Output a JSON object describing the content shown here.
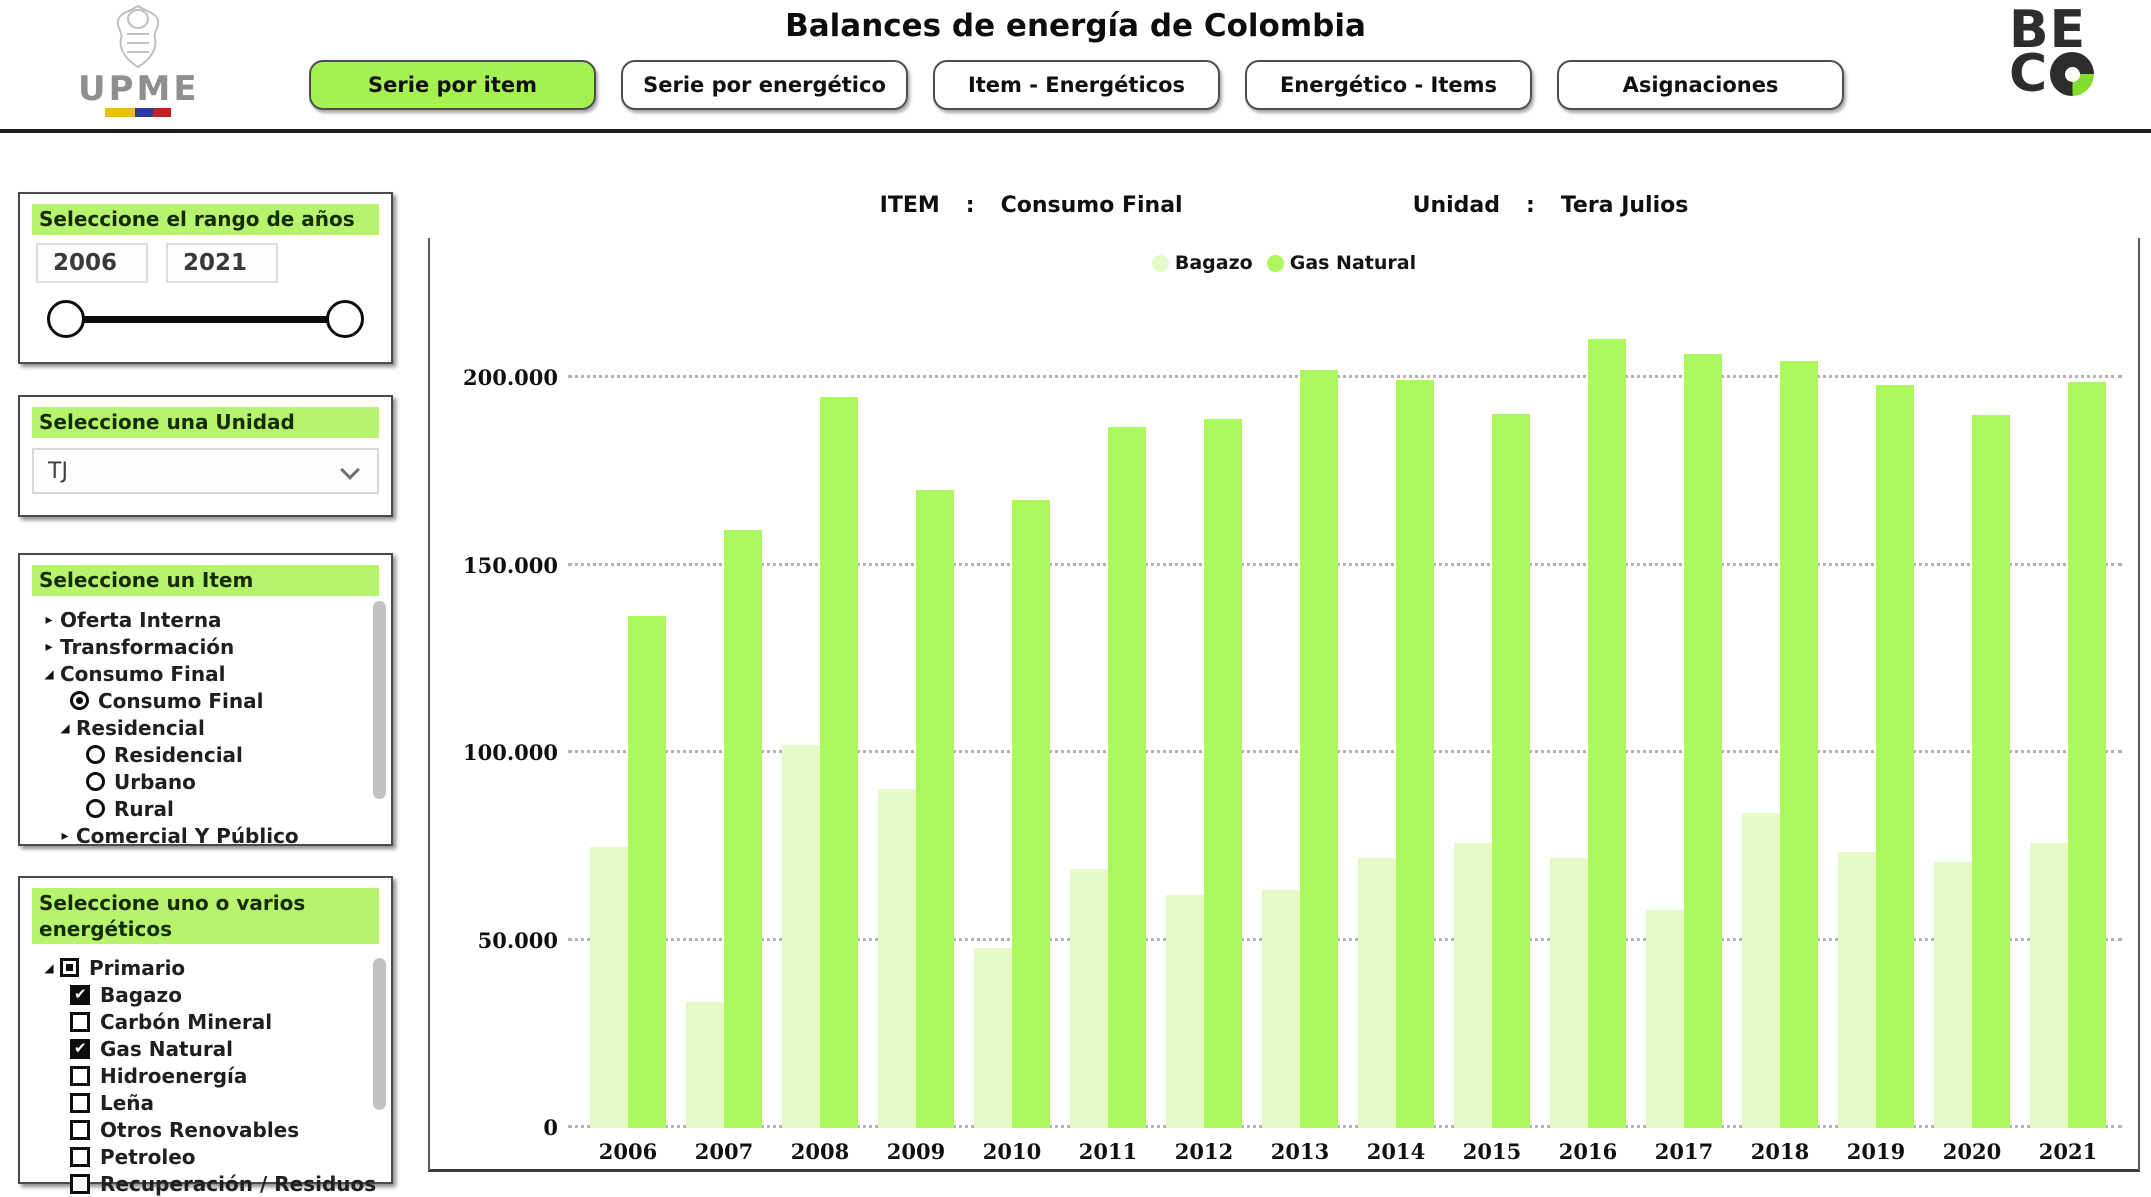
{
  "header": {
    "title": "Balances de energía de Colombia",
    "upme_text": "UPME",
    "beco_line1": "BE",
    "beco_line2_letter": "C",
    "tabs": [
      {
        "label": "Serie por item",
        "active": true
      },
      {
        "label": "Serie por energético",
        "active": false
      },
      {
        "label": "Item - Energéticos",
        "active": false
      },
      {
        "label": "Energético - Items",
        "active": false
      },
      {
        "label": "Asignaciones",
        "active": false
      }
    ]
  },
  "colors": {
    "accent_green": "#a6f152",
    "panel_header_green": "#b7f46e",
    "bar_bagazo": "#e4fbc9",
    "bar_gas_natural": "#abf75d",
    "beco_green": "#84dd2e"
  },
  "sidebar": {
    "year_range": {
      "title": "Seleccione el rango de años",
      "from": "2006",
      "to": "2021"
    },
    "unit": {
      "title": "Seleccione una Unidad",
      "value": "TJ"
    },
    "items": {
      "title": "Seleccione un Item",
      "tree": [
        {
          "label": "Oferta Interna",
          "indent": 0,
          "toggle": "collapsed"
        },
        {
          "label": "Transformación",
          "indent": 0,
          "toggle": "collapsed"
        },
        {
          "label": "Consumo Final",
          "indent": 0,
          "toggle": "expanded"
        },
        {
          "label": "Consumo Final",
          "indent": 1,
          "control": "radio-selected"
        },
        {
          "label": "Residencial",
          "indent": 1,
          "toggle": "expanded"
        },
        {
          "label": "Residencial",
          "indent": 2,
          "control": "radio"
        },
        {
          "label": "Urbano",
          "indent": 2,
          "control": "radio"
        },
        {
          "label": "Rural",
          "indent": 2,
          "control": "radio"
        },
        {
          "label": "Comercial Y Público",
          "indent": 1,
          "toggle": "collapsed"
        }
      ]
    },
    "energetics": {
      "title": "Seleccione uno o varios energéticos",
      "tree": [
        {
          "label": "Primario",
          "indent": 0,
          "toggle": "expanded",
          "control": "checkbox-indeterminate"
        },
        {
          "label": "Bagazo",
          "indent": 1,
          "control": "checkbox-checked"
        },
        {
          "label": "Carbón Mineral",
          "indent": 1,
          "control": "checkbox"
        },
        {
          "label": "Gas Natural",
          "indent": 1,
          "control": "checkbox-checked"
        },
        {
          "label": "Hidroenergía",
          "indent": 1,
          "control": "checkbox"
        },
        {
          "label": "Leña",
          "indent": 1,
          "control": "checkbox"
        },
        {
          "label": "Otros Renovables",
          "indent": 1,
          "control": "checkbox"
        },
        {
          "label": "Petroleo",
          "indent": 1,
          "control": "checkbox"
        },
        {
          "label": "Recuperación / Residuos",
          "indent": 1,
          "control": "checkbox"
        }
      ]
    }
  },
  "chart": {
    "item_label": "ITEM",
    "item_colon": ":",
    "item_value": "Consumo Final",
    "unit_label": "Unidad",
    "unit_colon": ":",
    "unit_value": "Tera Julios"
  },
  "chart_data": {
    "type": "bar",
    "title": "ITEM : Consumo Final — Unidad : Tera Julios",
    "xlabel": "",
    "ylabel": "Tera Julios",
    "categories": [
      "2006",
      "2007",
      "2008",
      "2009",
      "2010",
      "2011",
      "2012",
      "2013",
      "2014",
      "2015",
      "2016",
      "2017",
      "2018",
      "2019",
      "2020",
      "2021"
    ],
    "series": [
      {
        "name": "Bagazo",
        "color": "#e4fbc9",
        "values": [
          75000,
          33500,
          102000,
          90500,
          48000,
          69000,
          62000,
          63500,
          72000,
          76000,
          72000,
          58000,
          84000,
          73500,
          71000,
          76000
        ]
      },
      {
        "name": "Gas Natural",
        "color": "#abf75d",
        "values": [
          136500,
          159500,
          195000,
          170000,
          167500,
          187000,
          189000,
          202000,
          199500,
          190500,
          210500,
          206500,
          204500,
          198000,
          190000,
          199000
        ]
      }
    ],
    "ylim": [
      0,
      238000
    ],
    "yticks": [
      {
        "value": 0,
        "label": "0"
      },
      {
        "value": 50000,
        "label": "50.000"
      },
      {
        "value": 100000,
        "label": "100.000"
      },
      {
        "value": 150000,
        "label": "150.000"
      },
      {
        "value": 200000,
        "label": "200.000"
      }
    ],
    "grid": "horizontal-dotted",
    "legend_position": "top-center"
  }
}
